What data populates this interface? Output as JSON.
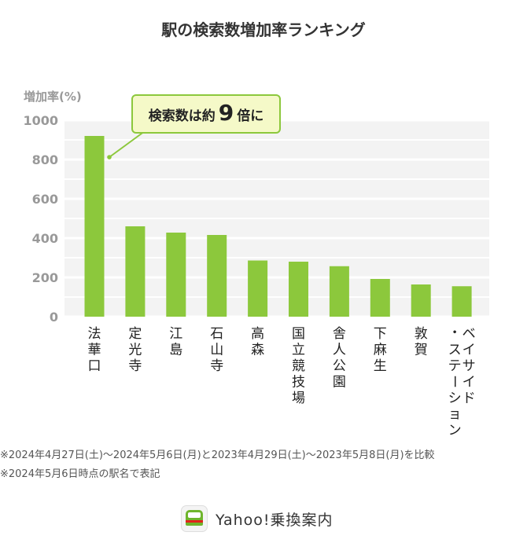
{
  "title": "駅の検索数増加率ランキング",
  "chart_data": {
    "type": "bar",
    "ylabel": "増加率(%)",
    "ylim": [
      0,
      1000
    ],
    "yticks": [
      0,
      200,
      400,
      600,
      800,
      1000
    ],
    "grid": true,
    "bar_color": "#8cc83c",
    "categories": [
      "法華口",
      "定光寺",
      "江島",
      "石山寺",
      "高森",
      "国立競技場",
      "舎人公園",
      "下麻生",
      "敦賀",
      "ベイサイド・ステーション"
    ],
    "values": [
      920,
      460,
      428,
      416,
      286,
      280,
      257,
      192,
      164,
      155
    ],
    "annotation": {
      "prefix": "検索数は約",
      "value": "9",
      "suffix": "倍に",
      "target_category": "法華口",
      "box_color": "#f5f9c8",
      "border_color": "#8cc83c"
    }
  },
  "notes": [
    "※2024年4月27日(土)～2024年5月6日(月)と2023年4月29日(土)～2023年5月8日(月)を比較",
    "※2024年5月6日時点の駅名で表記"
  ],
  "brand": {
    "name": "Yahoo!乗換案内",
    "icon": "train-icon"
  }
}
